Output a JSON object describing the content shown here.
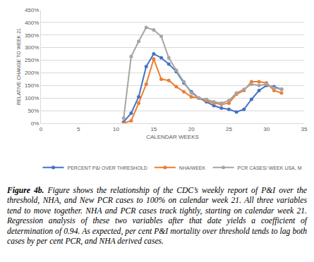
{
  "chart_data": {
    "type": "line",
    "x_label": "CALENDAR WEEKS",
    "y_label": "RELATIVE CHANGE TO WEEK 21",
    "x": [
      11,
      12,
      13,
      14,
      15,
      16,
      17,
      18,
      19,
      20,
      21,
      22,
      23,
      24,
      25,
      26,
      27,
      28,
      29,
      30,
      31,
      32
    ],
    "series": [
      {
        "name": "PERCENT P&I OVER THRESHOLD",
        "color": "#4472C4",
        "values": [
          5,
          40,
          105,
          225,
          275,
          260,
          235,
          205,
          160,
          125,
          100,
          85,
          70,
          60,
          55,
          45,
          55,
          95,
          130,
          150,
          145,
          135
        ]
      },
      {
        "name": "NHA/WEEK",
        "color": "#ED7D31",
        "values": [
          0,
          10,
          80,
          155,
          255,
          175,
          170,
          145,
          125,
          105,
          100,
          90,
          80,
          75,
          80,
          115,
          130,
          165,
          165,
          160,
          130,
          120
        ]
      },
      {
        "name": "PCR CASES/ WEEK USA, M",
        "color": "#A5A5A5",
        "values": [
          20,
          265,
          325,
          380,
          370,
          345,
          260,
          210,
          165,
          120,
          100,
          95,
          85,
          80,
          90,
          120,
          135,
          155,
          150,
          155,
          140,
          135
        ]
      }
    ],
    "xlim": [
      0,
      35
    ],
    "xticks": [
      0,
      5,
      10,
      15,
      20,
      25,
      30,
      35
    ],
    "ylim": [
      0,
      450
    ],
    "yticks": [
      {
        "value": 0,
        "label": "0%"
      },
      {
        "value": 50,
        "label": "50%"
      },
      {
        "value": 100,
        "label": "100%"
      },
      {
        "value": 150,
        "label": "150%"
      },
      {
        "value": 200,
        "label": "200%"
      },
      {
        "value": 250,
        "label": "250%"
      },
      {
        "value": 300,
        "label": "300%"
      },
      {
        "value": 350,
        "label": "350%"
      },
      {
        "value": 400,
        "label": "400%"
      },
      {
        "value": 450,
        "label": "450%"
      }
    ],
    "grid": true,
    "legend": "bottom",
    "marker": "circle",
    "line_style": "solid"
  },
  "caption": {
    "label": "Figure 4b.",
    "text": "Figure shows the relationship of the CDC’s weekly report of P&I over the threshold, NHA, and New PCR cases to 100% on calendar week 21. All three variables tend to move together. NHA and PCR cases track tightly, starting on calendar week 21. Regression analysis of these two variables after that date yields a coefficient of determination of 0.94.  As expected, per cent P&I mortality over threshold tends to lag both cases by per cent PCR, and NHA derived cases."
  }
}
